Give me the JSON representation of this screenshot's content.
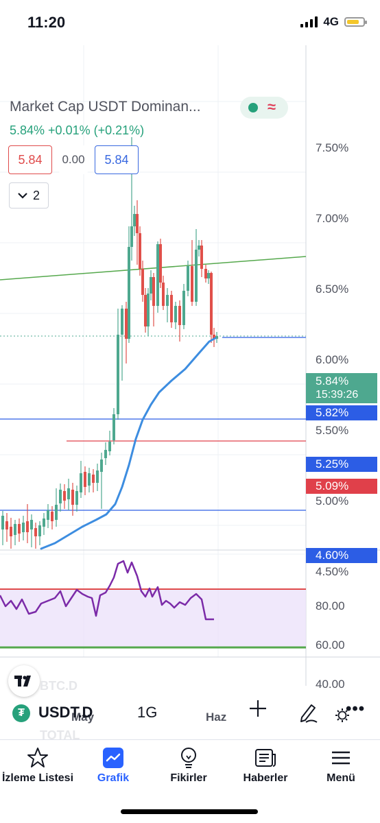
{
  "status_bar": {
    "time": "11:20",
    "network": "4G"
  },
  "chart": {
    "title": "Market Cap USDT Dominan...",
    "change_line": "5.84%  +0.01%  (+0.21%)",
    "open_box": "5.84",
    "diff_box": "0.00",
    "close_box": "5.84",
    "collapse_count": "2",
    "colors": {
      "up": "#4ea88f",
      "down": "#e0504a",
      "ma": "#3d8de0",
      "trend": "#55a84c",
      "rsi": "#7b2aa8"
    }
  },
  "price_axis": {
    "labels": [
      "7.50%",
      "7.00%",
      "6.50%",
      "6.00%",
      "5.50%",
      "5.00%",
      "4.50%"
    ],
    "current_price_tag": "5.84%",
    "countdown": "15:39:26",
    "ma_tag": "5.82%",
    "line_tags": [
      "5.25%",
      "5.09%",
      "4.60%"
    ]
  },
  "rsi_axis": {
    "labels": [
      "80.00",
      "60.00",
      "40.00"
    ]
  },
  "time_axis": {
    "labels": [
      "May",
      "Haz"
    ]
  },
  "symbol_bar": {
    "symbol": "USDT.D",
    "interval": "1G",
    "ghost_above": "BTC.D",
    "ghost_below": "TOTAL"
  },
  "tabs": [
    {
      "label": "İzleme Listesi",
      "icon": "star-icon"
    },
    {
      "label": "Grafik",
      "icon": "chart-icon"
    },
    {
      "label": "Fikirler",
      "icon": "lightbulb-icon"
    },
    {
      "label": "Haberler",
      "icon": "news-icon"
    },
    {
      "label": "Menü",
      "icon": "menu-icon"
    }
  ]
}
